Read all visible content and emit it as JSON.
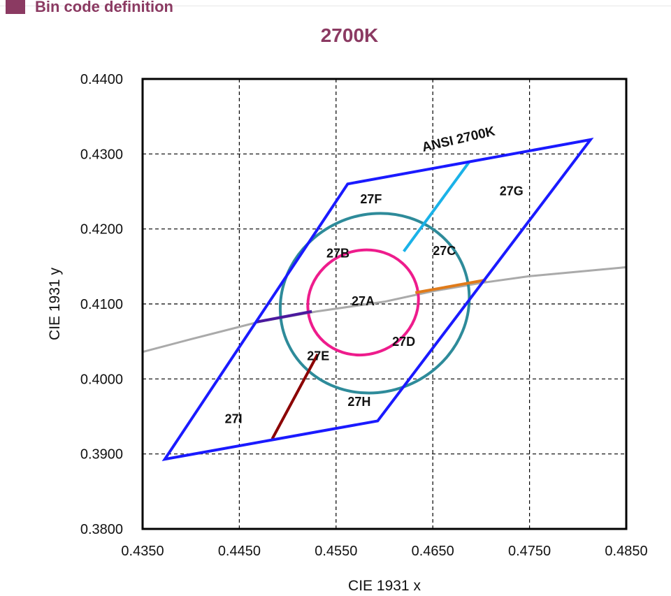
{
  "header": {
    "section_title": "Bin code definition",
    "icon": "square-bullet-icon"
  },
  "chart_data": {
    "type": "scatter",
    "title": "2700K",
    "xlabel": "CIE 1931 x",
    "ylabel": "CIE 1931 y",
    "xlim": [
      0.435,
      0.485
    ],
    "ylim": [
      0.38,
      0.44
    ],
    "xticks": [
      "0.4350",
      "0.4450",
      "0.4550",
      "0.4650",
      "0.4750",
      "0.4850"
    ],
    "yticks": [
      "0.4400",
      "0.4300",
      "0.4200",
      "0.4100",
      "0.4000",
      "0.3900",
      "0.3800"
    ],
    "x_tick_values": [
      0.435,
      0.445,
      0.455,
      0.465,
      0.475,
      0.485
    ],
    "y_tick_values": [
      0.44,
      0.43,
      0.42,
      0.41,
      0.4,
      0.39,
      0.38
    ],
    "grid": true,
    "ansi_quadrangle": {
      "label": "ANSI 2700K",
      "color": "#1a1aff",
      "points": [
        [
          0.4373,
          0.3893
        ],
        [
          0.4562,
          0.426
        ],
        [
          0.4813,
          0.4319
        ],
        [
          0.4593,
          0.3944
        ]
      ]
    },
    "blackbody_locus": {
      "color": "#aaaaaa",
      "points": [
        [
          0.435,
          0.4036
        ],
        [
          0.44,
          0.4053
        ],
        [
          0.447,
          0.4076
        ],
        [
          0.453,
          0.409
        ],
        [
          0.46,
          0.4103
        ],
        [
          0.465,
          0.4117
        ],
        [
          0.47,
          0.4128
        ],
        [
          0.475,
          0.4137
        ],
        [
          0.48,
          0.4143
        ],
        [
          0.485,
          0.4149
        ]
      ]
    },
    "outer_ellipse": {
      "color": "#2e8b9a",
      "center": [
        0.459,
        0.4101
      ],
      "rx": 0.0099,
      "ry": 0.0118
    },
    "inner_ellipse": {
      "color": "#ee1c8c",
      "center": [
        0.4578,
        0.4102
      ],
      "rx": 0.0058,
      "ry": 0.0069
    },
    "dividers": [
      {
        "color": "#1ab2e8",
        "from": [
          0.462,
          0.417
        ],
        "to": [
          0.4688,
          0.429
        ]
      },
      {
        "color": "#e07b1a",
        "from": [
          0.4632,
          0.4115
        ],
        "to": [
          0.4705,
          0.4132
        ]
      },
      {
        "color": "#4b1a9e",
        "from": [
          0.4468,
          0.4076
        ],
        "to": [
          0.4525,
          0.409
        ]
      },
      {
        "color": "#8b0000",
        "from": [
          0.4531,
          0.4033
        ],
        "to": [
          0.4484,
          0.392
        ]
      }
    ],
    "bin_labels": [
      {
        "text": "27A",
        "x": 0.4566,
        "y": 0.4098
      },
      {
        "text": "27B",
        "x": 0.454,
        "y": 0.4162
      },
      {
        "text": "27C",
        "x": 0.465,
        "y": 0.4165
      },
      {
        "text": "27D",
        "x": 0.4608,
        "y": 0.4044
      },
      {
        "text": "27E",
        "x": 0.452,
        "y": 0.4025
      },
      {
        "text": "27F",
        "x": 0.4575,
        "y": 0.4234
      },
      {
        "text": "27G",
        "x": 0.4719,
        "y": 0.4245
      },
      {
        "text": "27H",
        "x": 0.4562,
        "y": 0.3964
      },
      {
        "text": "27I",
        "x": 0.4435,
        "y": 0.3941
      }
    ],
    "ansi_label": {
      "text": "ANSI 2700K",
      "x": 0.464,
      "y": 0.4303,
      "rotation": -13
    }
  }
}
